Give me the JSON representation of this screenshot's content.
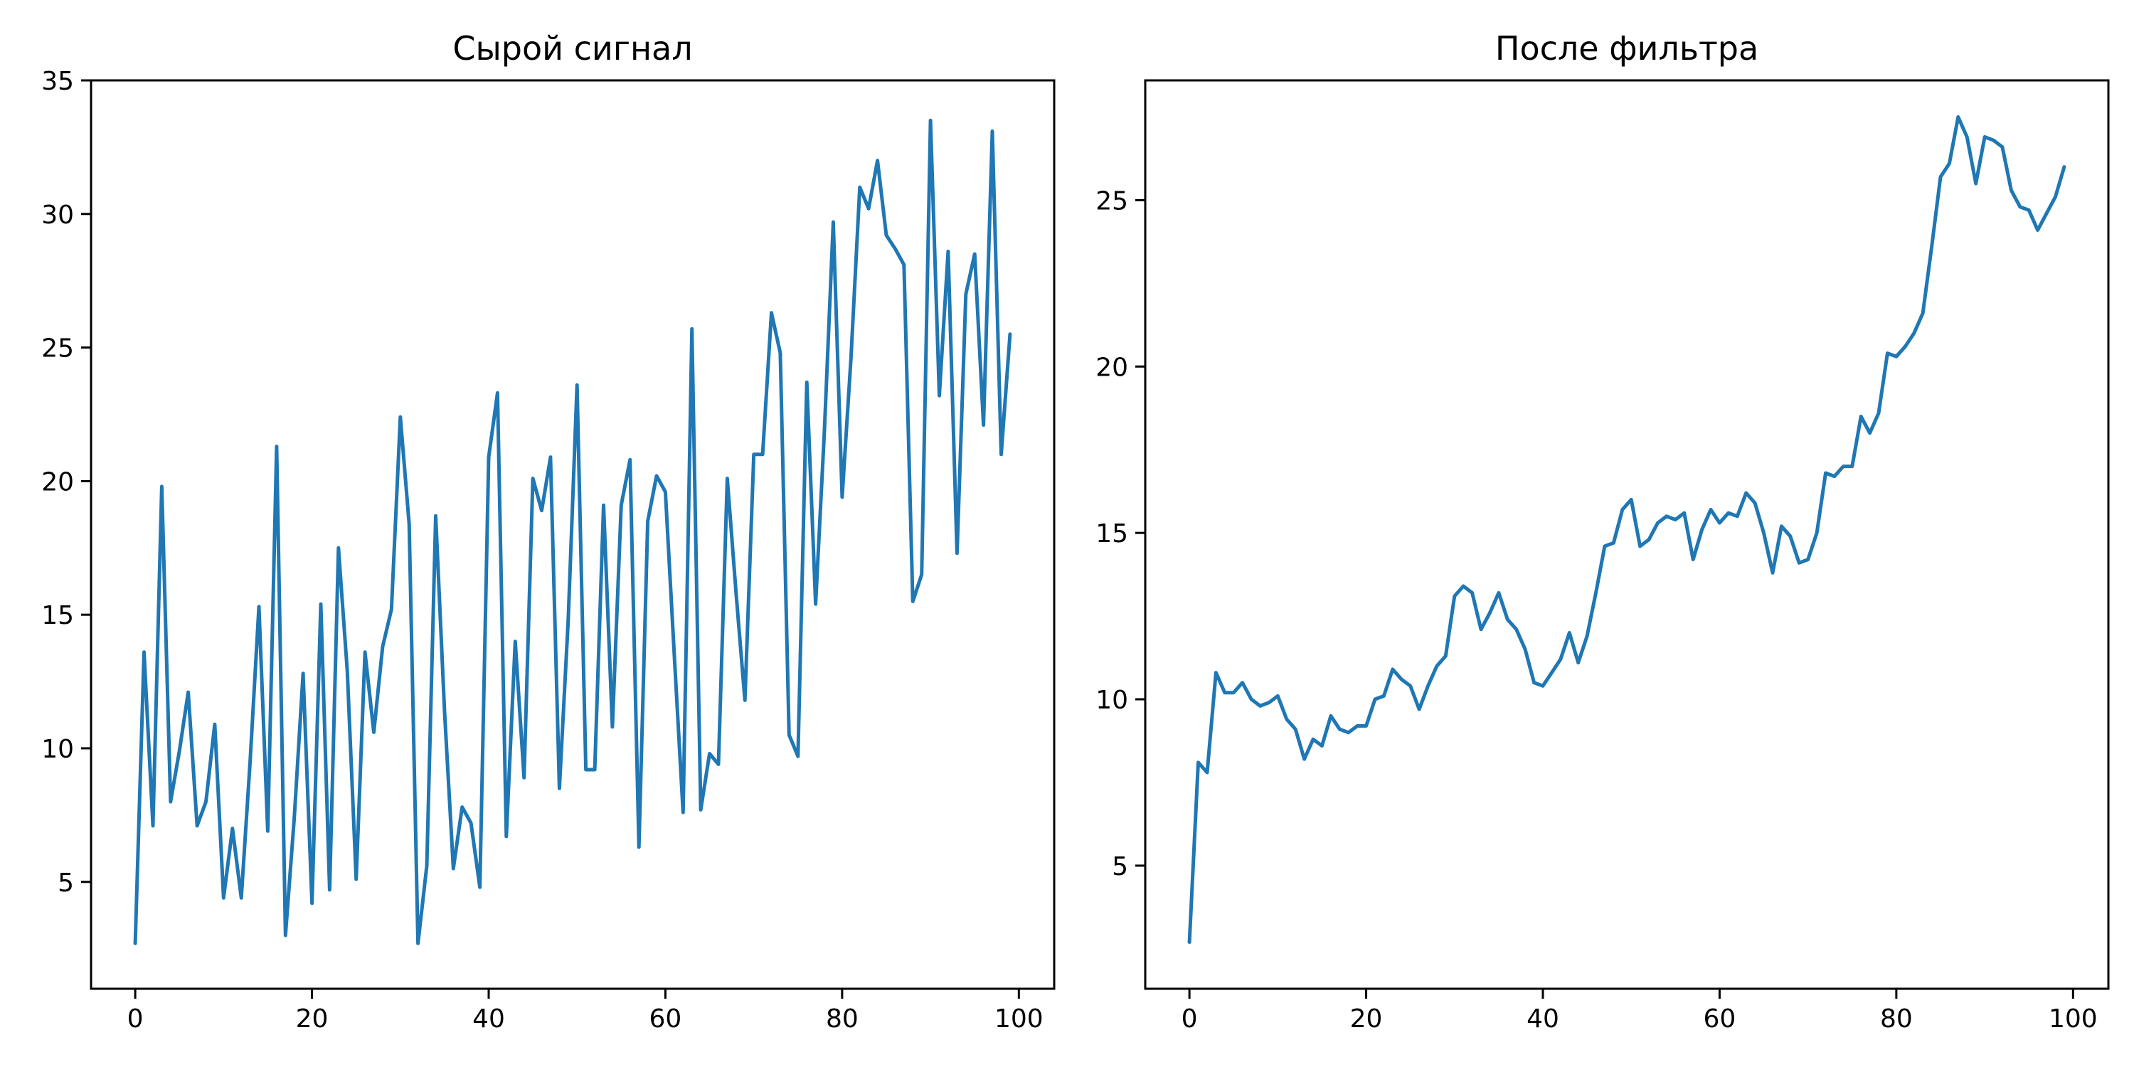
{
  "colors": {
    "series": "#1f77b4"
  },
  "chart_data": [
    {
      "type": "line",
      "title": "Сырой сигнал",
      "xlabel": "",
      "ylabel": "",
      "xlim": [
        -5,
        104
      ],
      "ylim": [
        1,
        35
      ],
      "x_ticks": [
        0,
        20,
        40,
        60,
        80,
        100
      ],
      "y_ticks": [
        5,
        10,
        15,
        20,
        25,
        30,
        35
      ],
      "grid": false,
      "series": [
        {
          "x": [
            0,
            1,
            2,
            3,
            4,
            5,
            6,
            7,
            8,
            9,
            10,
            11,
            12,
            13,
            14,
            15,
            16,
            17,
            18,
            19,
            20,
            21,
            22,
            23,
            24,
            25,
            26,
            27,
            28,
            29,
            30,
            31,
            32,
            33,
            34,
            35,
            36,
            37,
            38,
            39,
            40,
            41,
            42,
            43,
            44,
            45,
            46,
            47,
            48,
            49,
            50,
            51,
            52,
            53,
            54,
            55,
            56,
            57,
            58,
            59,
            60,
            61,
            62,
            63,
            64,
            65,
            66,
            67,
            68,
            69,
            70,
            71,
            72,
            73,
            74,
            75,
            76,
            77,
            78,
            79,
            80,
            81,
            82,
            83,
            84,
            85,
            86,
            87,
            88,
            89,
            90,
            91,
            92,
            93,
            94,
            95,
            96,
            97,
            98,
            99
          ],
          "values": [
            2.7,
            13.6,
            7.1,
            19.8,
            8.0,
            9.9,
            12.1,
            7.1,
            8.0,
            10.9,
            4.4,
            7.0,
            4.4,
            9.5,
            15.3,
            6.9,
            21.3,
            3.0,
            7.4,
            12.8,
            4.2,
            15.4,
            4.7,
            17.5,
            12.9,
            5.1,
            13.6,
            10.6,
            13.8,
            15.2,
            22.4,
            18.4,
            2.7,
            5.6,
            18.7,
            11.4,
            5.5,
            7.8,
            7.2,
            4.8,
            20.9,
            23.3,
            6.7,
            14.0,
            8.9,
            20.1,
            18.9,
            20.9,
            8.5,
            14.8,
            23.6,
            9.2,
            9.2,
            19.1,
            10.8,
            19.1,
            20.8,
            6.3,
            18.5,
            20.2,
            19.6,
            13.5,
            7.6,
            25.7,
            7.7,
            9.8,
            9.4,
            20.1,
            15.8,
            11.8,
            21.0,
            21.0,
            26.3,
            24.8,
            10.5,
            9.7,
            23.7,
            15.4,
            21.9,
            29.7,
            19.4,
            24.6,
            31.0,
            30.2,
            32.0,
            29.2,
            28.7,
            28.1,
            15.5,
            16.5,
            33.5,
            23.2,
            28.6,
            17.3,
            27.0,
            28.5,
            22.1,
            33.1,
            21.0,
            25.5
          ]
        }
      ]
    },
    {
      "type": "line",
      "title": "После фильтра",
      "xlabel": "",
      "ylabel": "",
      "xlim": [
        -5,
        104
      ],
      "ylim": [
        1.3,
        28.6
      ],
      "x_ticks": [
        0,
        20,
        40,
        60,
        80,
        100
      ],
      "y_ticks": [
        5,
        10,
        15,
        20,
        25
      ],
      "grid": false,
      "series": [
        {
          "x": [
            0,
            1,
            2,
            3,
            4,
            5,
            6,
            7,
            8,
            9,
            10,
            11,
            12,
            13,
            14,
            15,
            16,
            17,
            18,
            19,
            20,
            21,
            22,
            23,
            24,
            25,
            26,
            27,
            28,
            29,
            30,
            31,
            32,
            33,
            34,
            35,
            36,
            37,
            38,
            39,
            40,
            41,
            42,
            43,
            44,
            45,
            46,
            47,
            48,
            49,
            50,
            51,
            52,
            53,
            54,
            55,
            56,
            57,
            58,
            59,
            60,
            61,
            62,
            63,
            64,
            65,
            66,
            67,
            68,
            69,
            70,
            71,
            72,
            73,
            74,
            75,
            76,
            77,
            78,
            79,
            80,
            81,
            82,
            83,
            84,
            85,
            86,
            87,
            88,
            89,
            90,
            91,
            92,
            93,
            94,
            95,
            96,
            97,
            98,
            99
          ],
          "values": [
            2.7,
            8.1,
            7.8,
            10.8,
            10.2,
            10.2,
            10.5,
            10.0,
            9.8,
            9.9,
            10.1,
            9.4,
            9.1,
            8.2,
            8.8,
            8.6,
            9.5,
            9.1,
            9.0,
            9.2,
            9.2,
            10.0,
            10.1,
            10.9,
            10.6,
            10.4,
            9.7,
            10.4,
            11.0,
            11.3,
            13.1,
            13.4,
            13.2,
            12.1,
            12.6,
            13.2,
            12.4,
            12.1,
            11.5,
            10.5,
            10.4,
            10.8,
            11.2,
            12.0,
            11.1,
            11.9,
            13.2,
            14.6,
            14.7,
            15.7,
            16.0,
            14.6,
            14.8,
            15.3,
            15.5,
            15.4,
            15.6,
            14.2,
            15.1,
            15.7,
            15.3,
            15.6,
            15.5,
            16.2,
            15.9,
            15.0,
            13.8,
            15.2,
            14.9,
            14.1,
            14.2,
            15.0,
            16.8,
            16.7,
            17.0,
            17.0,
            18.5,
            18.0,
            18.6,
            20.4,
            20.3,
            20.6,
            21.0,
            21.6,
            23.6,
            25.7,
            26.1,
            27.5,
            26.9,
            25.5,
            26.9,
            26.8,
            26.6,
            25.3,
            24.8,
            24.7,
            24.1,
            24.6,
            25.1,
            26.0
          ]
        }
      ]
    }
  ]
}
